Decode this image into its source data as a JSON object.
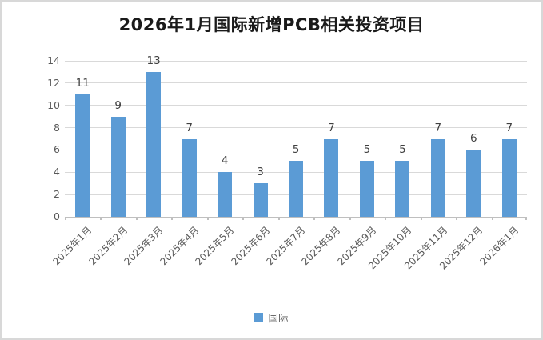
{
  "chart_data": {
    "type": "bar",
    "title": "2026年1月国际新增PCB相关投资项目",
    "categories": [
      "2025年1月",
      "2025年2月",
      "2025年3月",
      "2025年4月",
      "2025年5月",
      "2025年6月",
      "2025年7月",
      "2025年8月",
      "2025年9月",
      "2025年10月",
      "2025年11月",
      "2025年12月",
      "2026年1月"
    ],
    "series": [
      {
        "name": "国际",
        "values": [
          11,
          9,
          13,
          7,
          4,
          3,
          5,
          7,
          5,
          5,
          7,
          6,
          7
        ]
      }
    ],
    "data_labels": [
      11,
      9,
      13,
      7,
      4,
      3,
      5,
      7,
      5,
      5,
      7,
      6,
      7
    ],
    "xlabel": "",
    "ylabel": "",
    "ylim": [
      0,
      14
    ],
    "ytick_step": 2,
    "ytick_labels": [
      "0",
      "2",
      "4",
      "6",
      "8",
      "10",
      "12",
      "14"
    ],
    "grid": true,
    "legend_position": "bottom",
    "colors": {
      "bar": "#5B9BD5",
      "gridline": "#D9D9D9",
      "axis_line": "#BFBFBF",
      "tick_text": "#595959",
      "data_label_text": "#404040",
      "title_text": "#1A1A1A",
      "frame_border": "#D8D8D8",
      "background": "#FFFFFF"
    }
  }
}
